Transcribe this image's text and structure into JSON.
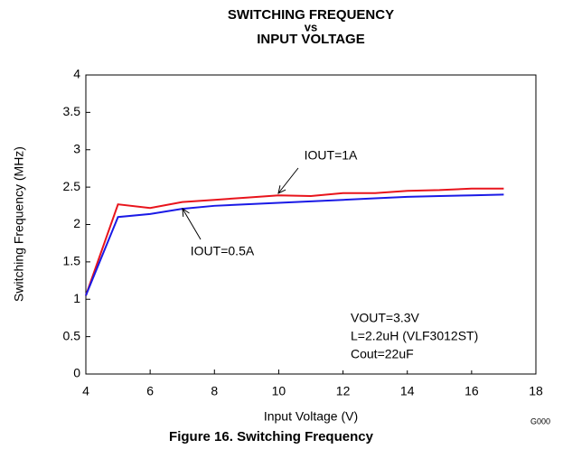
{
  "chart_data": {
    "type": "line",
    "title": [
      "SWITCHING FREQUENCY",
      "vs",
      "INPUT VOLTAGE"
    ],
    "x_label": "Input Voltage (V)",
    "y_label": "Switching Frequency (MHz)",
    "caption": "Figure 16. Switching Frequency",
    "figure_code": "G000",
    "x": [
      4,
      5,
      6,
      7,
      8,
      9,
      10,
      11,
      12,
      13,
      14,
      15,
      16,
      17
    ],
    "series": [
      {
        "color": "#e8141c",
        "values": [
          1.05,
          2.27,
          2.22,
          2.3,
          2.33,
          2.36,
          2.39,
          2.38,
          2.42,
          2.42,
          2.45,
          2.46,
          2.48,
          2.48
        ]
      },
      {
        "color": "#1a1ae6",
        "values": [
          1.05,
          2.1,
          2.14,
          2.21,
          2.25,
          2.27,
          2.29,
          2.31,
          2.33,
          2.35,
          2.37,
          2.38,
          2.39,
          2.4
        ]
      }
    ],
    "annotations": [
      "IOUT=1A",
      "IOUT=0.5A"
    ],
    "conditions": [
      "VOUT=3.3V",
      "L=2.2uH (VLF3012ST)",
      "Cout=22uF"
    ],
    "xlim": [
      4,
      18
    ],
    "xticks": [
      4,
      6,
      8,
      10,
      12,
      14,
      16,
      18
    ],
    "ylim": [
      0,
      4
    ],
    "yticks": [
      0,
      0.5,
      1,
      1.5,
      2,
      2.5,
      3,
      3.5,
      4
    ],
    "grid": false
  }
}
